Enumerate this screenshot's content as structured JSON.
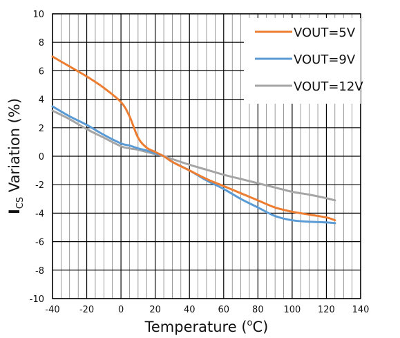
{
  "chart_data": {
    "type": "line",
    "xlabel": {
      "text": "Temperature (",
      "sup": "o",
      "after": "C)"
    },
    "ylabel": {
      "main": "I",
      "sub": "CS",
      "rest": " Variation (%)"
    },
    "xlim": [
      -40,
      140
    ],
    "ylim": [
      -10,
      10
    ],
    "x_ticks": [
      -40,
      -20,
      0,
      20,
      40,
      60,
      80,
      100,
      120,
      140
    ],
    "y_ticks": [
      -10,
      -8,
      -6,
      -4,
      -2,
      0,
      2,
      4,
      6,
      8,
      10
    ],
    "grid": true,
    "legend_position": "top-right",
    "series": [
      {
        "name": "VOUT=5V",
        "color": "#ED7D31",
        "x": [
          -40,
          -30,
          -20,
          -10,
          0,
          5,
          10,
          15,
          20,
          25,
          30,
          40,
          50,
          60,
          70,
          80,
          90,
          100,
          110,
          120,
          125
        ],
        "y": [
          7.0,
          6.3,
          5.6,
          4.8,
          3.8,
          2.8,
          1.3,
          0.6,
          0.3,
          0.0,
          -0.4,
          -1.0,
          -1.6,
          -2.1,
          -2.6,
          -3.1,
          -3.6,
          -3.9,
          -4.1,
          -4.3,
          -4.5
        ]
      },
      {
        "name": "VOUT=9V",
        "color": "#5B9BD5",
        "x": [
          -40,
          -30,
          -20,
          -10,
          0,
          5,
          10,
          15,
          20,
          25,
          30,
          40,
          50,
          60,
          70,
          80,
          90,
          100,
          110,
          120,
          125
        ],
        "y": [
          3.5,
          2.8,
          2.2,
          1.5,
          0.9,
          0.75,
          0.55,
          0.4,
          0.2,
          0.0,
          -0.4,
          -1.0,
          -1.7,
          -2.3,
          -3.0,
          -3.6,
          -4.2,
          -4.5,
          -4.6,
          -4.65,
          -4.7
        ]
      },
      {
        "name": "VOUT=12V",
        "color": "#A5A5A5",
        "x": [
          -40,
          -30,
          -20,
          -10,
          0,
          5,
          10,
          15,
          20,
          25,
          30,
          40,
          50,
          60,
          70,
          80,
          90,
          100,
          110,
          120,
          125
        ],
        "y": [
          3.2,
          2.6,
          1.9,
          1.3,
          0.7,
          0.55,
          0.45,
          0.3,
          0.15,
          0.0,
          -0.2,
          -0.6,
          -0.95,
          -1.3,
          -1.6,
          -1.9,
          -2.2,
          -2.5,
          -2.7,
          -2.95,
          -3.1
        ]
      }
    ]
  }
}
